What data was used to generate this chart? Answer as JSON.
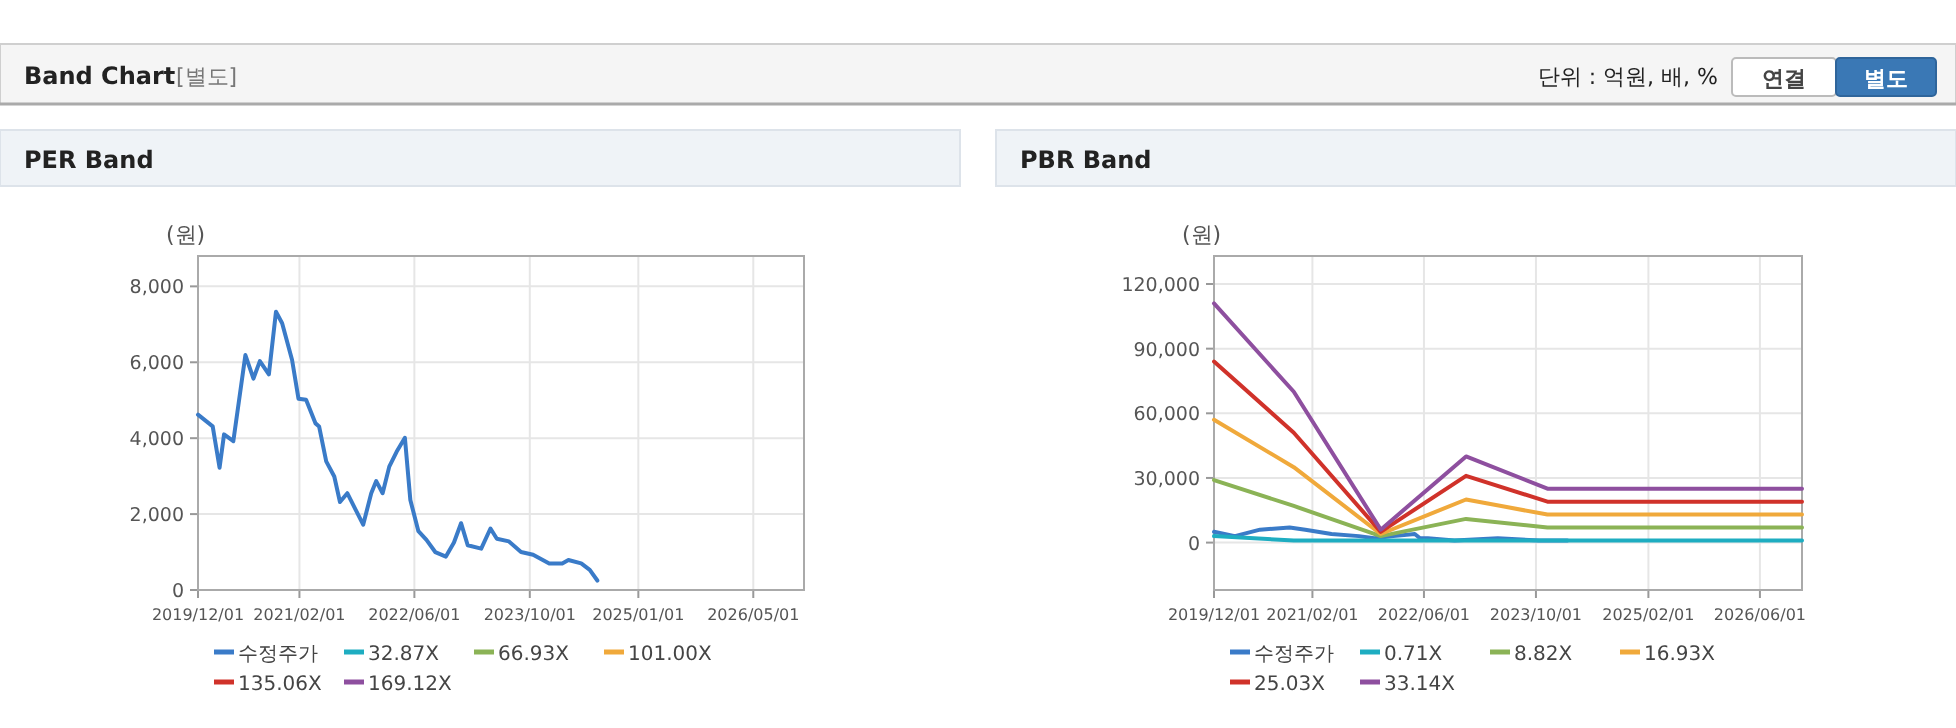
{
  "chart_data": [
    {
      "type": "other",
      "title": "Band Chart",
      "annotations": [
        "[별도]",
        "단위 : 억원, 배, %",
        "연결",
        "별도"
      ]
    },
    {
      "type": "line",
      "title": "PER Band",
      "ylabel": "(원)",
      "grid": true,
      "legend": "bottom",
      "marker": "none",
      "line_style": "solid",
      "xlim": [
        "2019-12-01",
        "2026-12-01"
      ],
      "xticks": [
        {
          "value": "2019-12-01",
          "label": "2019/12/01"
        },
        {
          "value": "2021-02-01",
          "label": "2021/02/01"
        },
        {
          "value": "2022-06-01",
          "label": "2022/06/01"
        },
        {
          "value": "2023-10-01",
          "label": "2023/10/01"
        },
        {
          "value": "2025-01-01",
          "label": "2025/01/01"
        },
        {
          "value": "2026-05-01",
          "label": "2026/05/01"
        }
      ],
      "ylim": [
        0,
        8800
      ],
      "yticks": [
        0,
        {
          "value": 2000,
          "label": "2,000"
        },
        {
          "value": 4000,
          "label": "4,000"
        },
        {
          "value": 6000,
          "label": "6,000"
        },
        {
          "value": 8000,
          "label": "8,000"
        }
      ],
      "series": [
        {
          "name": "수정주가",
          "color": "#3a7bc8",
          "x": [
            "2019-12-01",
            "2020-02-01",
            "2020-03-01",
            "2020-03-20",
            "2020-04-28",
            "2020-06-18",
            "2020-07-22",
            "2020-08-18",
            "2020-09-25",
            "2020-10-25",
            "2020-11-20",
            "2021-01-01",
            "2021-01-28",
            "2021-03-01",
            "2021-04-10",
            "2021-04-25",
            "2021-05-25",
            "2021-06-28",
            "2021-07-22",
            "2021-08-22",
            "2021-10-28",
            "2021-12-01",
            "2021-12-22",
            "2022-01-18",
            "2022-02-15",
            "2022-03-18",
            "2022-04-22",
            "2022-05-15",
            "2022-06-18",
            "2022-07-22",
            "2022-08-28",
            "2022-10-12",
            "2022-11-15",
            "2022-12-15",
            "2023-01-12",
            "2023-03-10",
            "2023-04-18",
            "2023-05-15",
            "2023-07-05",
            "2023-08-25",
            "2023-10-15",
            "2023-12-22",
            "2024-02-15",
            "2024-03-12",
            "2024-05-05",
            "2024-06-10",
            "2024-07-12"
          ],
          "values": [
            4620,
            4310,
            3220,
            4100,
            3920,
            6190,
            5570,
            6030,
            5680,
            7330,
            7030,
            6060,
            5040,
            5010,
            4390,
            4310,
            3390,
            2990,
            2320,
            2550,
            1720,
            2550,
            2870,
            2550,
            3250,
            3640,
            4010,
            2370,
            1550,
            1320,
            1000,
            880,
            1250,
            1760,
            1180,
            1090,
            1620,
            1350,
            1280,
            1000,
            930,
            700,
            700,
            790,
            700,
            530,
            250
          ]
        },
        {
          "name": "32.87X",
          "color": "#1eadc1"
        },
        {
          "name": "66.93X",
          "color": "#8bb356"
        },
        {
          "name": "101.00X",
          "color": "#f0a93b"
        },
        {
          "name": "135.06X",
          "color": "#d0322a"
        },
        {
          "name": "169.12X",
          "color": "#8e4f9f"
        }
      ]
    },
    {
      "type": "line",
      "title": "PBR Band",
      "ylabel": "(원)",
      "grid": true,
      "legend": "bottom",
      "marker": "none",
      "line_style": "solid",
      "xlim": [
        "2019-12-01",
        "2026-12-01"
      ],
      "xticks": [
        {
          "value": "2019-12-01",
          "label": "2019/12/01"
        },
        {
          "value": "2021-02-01",
          "label": "2021/02/01"
        },
        {
          "value": "2022-06-01",
          "label": "2022/06/01"
        },
        {
          "value": "2023-10-01",
          "label": "2023/10/01"
        },
        {
          "value": "2025-02-01",
          "label": "2025/02/01"
        },
        {
          "value": "2026-06-01",
          "label": "2026/06/01"
        }
      ],
      "ylim": [
        -22000,
        133000
      ],
      "yticks": [
        0,
        {
          "value": 30000,
          "label": "30,000"
        },
        {
          "value": 60000,
          "label": "60,000"
        },
        {
          "value": 90000,
          "label": "90,000"
        },
        {
          "value": 120000,
          "label": "120,000"
        }
      ],
      "series": [
        {
          "name": "수정주가",
          "color": "#3a7bc8",
          "x": [
            "2019-12-01",
            "2020-03-01",
            "2020-06-18",
            "2020-10-25",
            "2021-01-01",
            "2021-04-25",
            "2021-08-22",
            "2021-10-28",
            "2022-01-18",
            "2022-04-22",
            "2022-05-15",
            "2022-06-18",
            "2022-10-12",
            "2023-04-18",
            "2023-10-15",
            "2024-02-15"
          ],
          "values": [
            5000,
            3000,
            6000,
            7000,
            6000,
            4000,
            3000,
            2000,
            3000,
            4000,
            2000,
            2000,
            1000,
            2000,
            1000,
            1000
          ]
        },
        {
          "name": "0.71X",
          "color": "#1eadc1",
          "x": [
            "2019-12-01",
            "2020-11-12",
            "2021-11-25",
            "2022-12-01",
            "2023-11-20",
            "2026-12-01"
          ],
          "values": [
            3000,
            1000,
            1000,
            1000,
            1000,
            1000
          ]
        },
        {
          "name": "8.82X",
          "color": "#8bb356",
          "x": [
            "2019-12-01",
            "2020-11-12",
            "2021-11-25",
            "2022-12-01",
            "2023-11-20",
            "2026-12-01"
          ],
          "values": [
            29000,
            17000,
            3000,
            11000,
            7000,
            7000
          ]
        },
        {
          "name": "16.93X",
          "color": "#f0a93b",
          "x": [
            "2019-12-01",
            "2020-11-12",
            "2021-11-25",
            "2022-12-01",
            "2023-11-20",
            "2026-12-01"
          ],
          "values": [
            57000,
            35000,
            4000,
            20000,
            13000,
            13000
          ]
        },
        {
          "name": "25.03X",
          "color": "#d0322a",
          "x": [
            "2019-12-01",
            "2020-11-12",
            "2021-11-25",
            "2022-12-01",
            "2023-11-20",
            "2026-12-01"
          ],
          "values": [
            84000,
            51000,
            5000,
            31000,
            19000,
            19000
          ]
        },
        {
          "name": "33.14X",
          "color": "#8e4f9f",
          "x": [
            "2019-12-01",
            "2020-11-12",
            "2021-11-25",
            "2022-12-01",
            "2023-11-20",
            "2026-12-01"
          ],
          "values": [
            111000,
            70000,
            6000,
            40000,
            25000,
            25000
          ]
        }
      ]
    }
  ]
}
